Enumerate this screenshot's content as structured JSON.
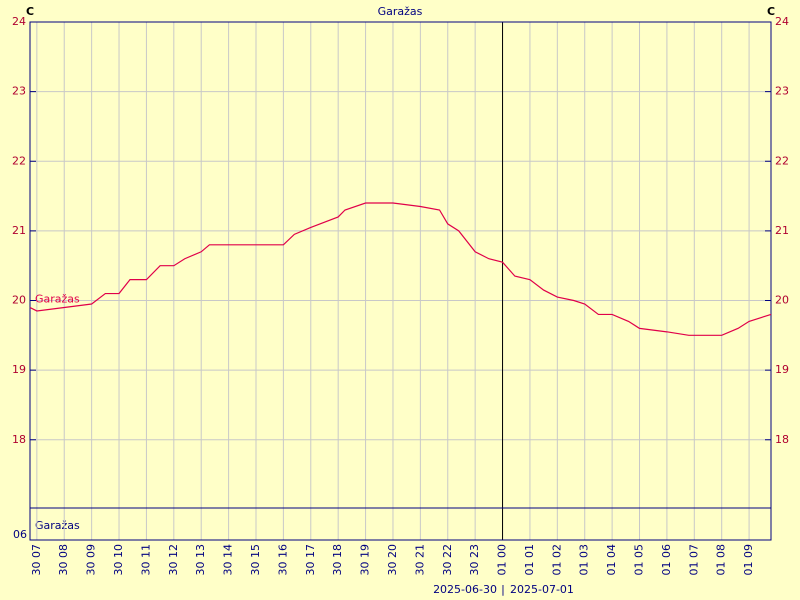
{
  "chart_data": {
    "type": "line",
    "title": "Garažas",
    "y_unit": "C",
    "bottom_label": "06",
    "date_labels": [
      "2025-06-30",
      "2025-07-01"
    ],
    "x": [
      6.75,
      7,
      8,
      9,
      9.5,
      10,
      10.4,
      11,
      11.5,
      12,
      12.4,
      13,
      13.3,
      14,
      15,
      16,
      16.4,
      17,
      18,
      18.25,
      19,
      20,
      21,
      21.7,
      22,
      22.4,
      23,
      23.5,
      24,
      24.45,
      25,
      25.5,
      26,
      26.6,
      27,
      27.5,
      28,
      28.6,
      29,
      30,
      30.8,
      31,
      32,
      32.6,
      33,
      33.8
    ],
    "series": [
      {
        "name": "Garažas",
        "color": "#e0004a",
        "values": [
          19.9,
          19.85,
          19.9,
          19.95,
          20.1,
          20.1,
          20.3,
          20.3,
          20.5,
          20.5,
          20.6,
          20.7,
          20.8,
          20.8,
          20.8,
          20.8,
          20.95,
          21.05,
          21.2,
          21.3,
          21.4,
          21.4,
          21.35,
          21.3,
          21.1,
          21.0,
          20.7,
          20.6,
          20.55,
          20.35,
          20.3,
          20.15,
          20.05,
          20.0,
          19.95,
          19.8,
          19.8,
          19.7,
          19.6,
          19.55,
          19.5,
          19.5,
          19.5,
          19.6,
          19.7,
          19.8
        ]
      }
    ],
    "divider_x": 24,
    "xlim": [
      6.75,
      33.8
    ],
    "xticks": [
      {
        "value": 7,
        "label": "30 07"
      },
      {
        "value": 8,
        "label": "30 08"
      },
      {
        "value": 9,
        "label": "30 09"
      },
      {
        "value": 10,
        "label": "30 10"
      },
      {
        "value": 11,
        "label": "30 11"
      },
      {
        "value": 12,
        "label": "30 12"
      },
      {
        "value": 13,
        "label": "30 13"
      },
      {
        "value": 14,
        "label": "30 14"
      },
      {
        "value": 15,
        "label": "30 15"
      },
      {
        "value": 16,
        "label": "30 16"
      },
      {
        "value": 17,
        "label": "30 17"
      },
      {
        "value": 18,
        "label": "30 18"
      },
      {
        "value": 19,
        "label": "30 19"
      },
      {
        "value": 20,
        "label": "30 20"
      },
      {
        "value": 21,
        "label": "30 21"
      },
      {
        "value": 22,
        "label": "30 22"
      },
      {
        "value": 23,
        "label": "30 23"
      },
      {
        "value": 24,
        "label": "01 00"
      },
      {
        "value": 25,
        "label": "01 01"
      },
      {
        "value": 26,
        "label": "01 02"
      },
      {
        "value": 27,
        "label": "01 03"
      },
      {
        "value": 28,
        "label": "01 04"
      },
      {
        "value": 29,
        "label": "01 05"
      },
      {
        "value": 30,
        "label": "01 06"
      },
      {
        "value": 31,
        "label": "01 07"
      },
      {
        "value": 32,
        "label": "01 08"
      },
      {
        "value": 33,
        "label": "01 09"
      }
    ],
    "ylim": [
      17.02,
      24
    ],
    "yticks": [
      18,
      19,
      20,
      21,
      22,
      23,
      24
    ],
    "grid": true
  }
}
